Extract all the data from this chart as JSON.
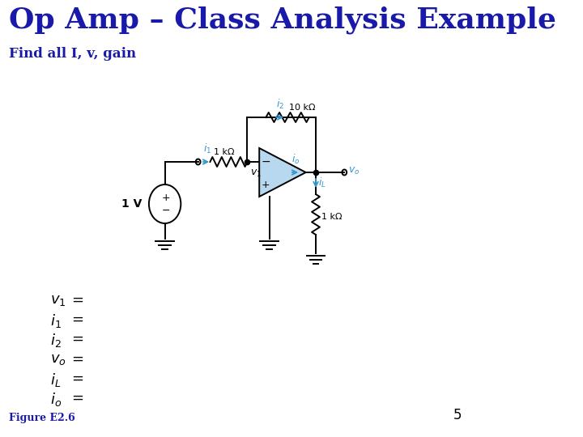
{
  "title": "Op Amp – Class Analysis Example",
  "title_color": "#1a1aaa",
  "title_fontsize": 26,
  "subtitle": "Find all I, v, gain",
  "subtitle_color": "#1a1aaa",
  "subtitle_fontsize": 12,
  "background_color": "#ffffff",
  "circuit_color": "#000000",
  "cyan_color": "#3399cc",
  "opamp_fill": "#b8d8f0",
  "page_number": "5",
  "figure_label": "Figure E2.6",
  "page_number_color": "#000000"
}
